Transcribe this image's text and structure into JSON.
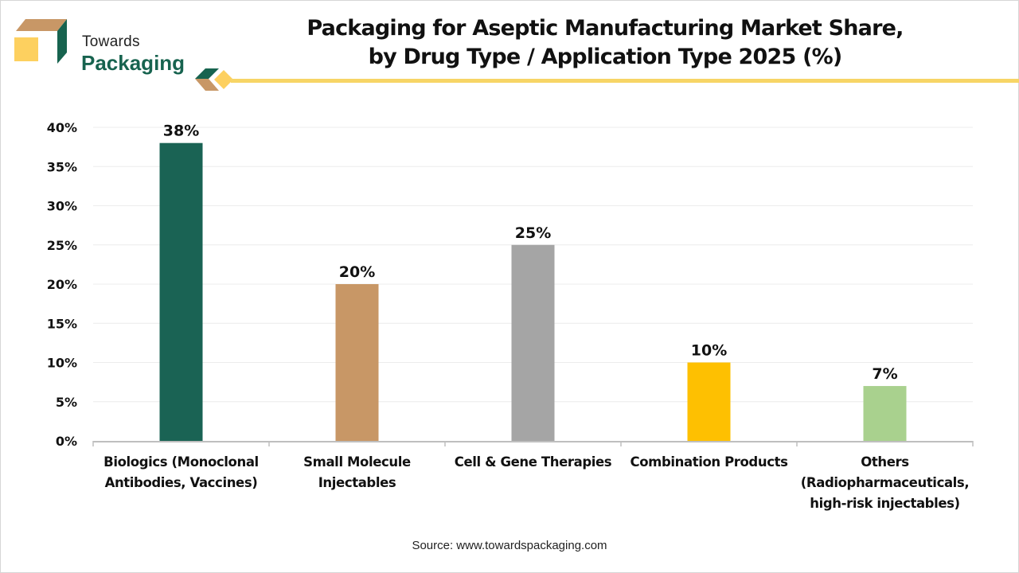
{
  "brand": {
    "line1": "Towards",
    "line2": "Packaging"
  },
  "chart_data": {
    "type": "bar",
    "title": "Packaging for Aseptic Manufacturing Market Share, by Drug Type / Application Type 2025 (%)",
    "title_lines": [
      "Packaging for Aseptic Manufacturing Market Share,",
      "by Drug Type / Application Type 2025 (%)"
    ],
    "xlabel": "",
    "ylabel": "",
    "categories": [
      "Biologics (Monoclonal Antibodies, Vaccines)",
      "Small Molecule Injectables",
      "Cell & Gene Therapies",
      "Combination Products",
      "Others (Radiopharmaceuticals, high-risk injectables)"
    ],
    "category_label_lines": [
      [
        "Biologics (Monoclonal",
        "Antibodies, Vaccines)"
      ],
      [
        "Small Molecule",
        "Injectables"
      ],
      [
        "Cell & Gene Therapies"
      ],
      [
        "Combination Products"
      ],
      [
        "Others",
        "(Radiopharmaceuticals,",
        "high-risk injectables)"
      ]
    ],
    "values": [
      38,
      20,
      25,
      10,
      7
    ],
    "data_labels": [
      "38%",
      "20%",
      "25%",
      "10%",
      "7%"
    ],
    "colors": [
      "#1a6354",
      "#c89766",
      "#a5a5a5",
      "#fec001",
      "#a9d18e"
    ],
    "ylim": [
      0,
      40
    ],
    "yticks": [
      0,
      5,
      10,
      15,
      20,
      25,
      30,
      35,
      40
    ],
    "ytick_labels": [
      "0%",
      "5%",
      "10%",
      "15%",
      "20%",
      "25%",
      "30%",
      "35%",
      "40%"
    ],
    "grid": true,
    "legend": "none"
  },
  "source": "Source: www.towardspackaging.com"
}
